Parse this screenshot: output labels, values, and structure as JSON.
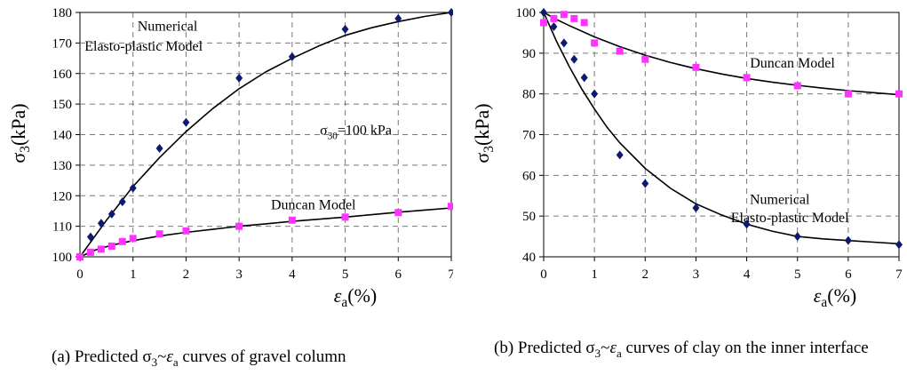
{
  "colors": {
    "numerical_marker": "#0d1a6e",
    "duncan_marker": "#ff33ff",
    "curve": "#000000",
    "grid": "#777777"
  },
  "chart_data": [
    {
      "type": "scatter",
      "panel": "a",
      "title": "",
      "ylabel": "σ3(kPa)",
      "xlabel": "εa(%)",
      "xlim": [
        0,
        7
      ],
      "ylim": [
        100,
        180
      ],
      "xticks": [
        0,
        1,
        2,
        3,
        4,
        5,
        6,
        7
      ],
      "yticks": [
        100,
        110,
        120,
        130,
        140,
        150,
        160,
        170,
        180
      ],
      "grid": "dashed",
      "annotations": [
        {
          "text": "Numerical",
          "x": 1.65,
          "y": 174
        },
        {
          "text": "Elasto-plastic Model",
          "x": 1.2,
          "y": 167.5
        },
        {
          "text": "σ30=100 kPa",
          "x": 5.2,
          "y": 140
        },
        {
          "text": "Duncan Model",
          "x": 4.4,
          "y": 115.5
        }
      ],
      "series": [
        {
          "marker": "diamond",
          "color": "#0d1a6e",
          "x": [
            0,
            0.2,
            0.4,
            0.6,
            0.8,
            1.0,
            1.5,
            2,
            3,
            4,
            5,
            6,
            7
          ],
          "y": [
            100,
            106.5,
            111,
            114,
            118,
            122.5,
            135.5,
            144,
            158.5,
            165.5,
            174.5,
            178,
            180
          ]
        },
        {
          "marker": "square",
          "color": "#ff33ff",
          "x": [
            0,
            0.2,
            0.4,
            0.6,
            0.8,
            1.0,
            1.5,
            2,
            3,
            4,
            5,
            6,
            7
          ],
          "y": [
            100,
            101.5,
            102.5,
            103.5,
            105,
            106,
            107.5,
            108.5,
            110,
            112,
            113,
            114.5,
            116.5
          ]
        }
      ],
      "fit_curves": [
        {
          "x": [
            0,
            0.5,
            1,
            1.5,
            2,
            2.5,
            3,
            3.5,
            4,
            4.5,
            5,
            5.5,
            6,
            6.5,
            7
          ],
          "y": [
            100,
            112,
            123,
            132.5,
            141,
            148.5,
            155,
            160.5,
            165,
            169,
            172.5,
            175,
            177,
            178.7,
            180
          ]
        },
        {
          "x": [
            0,
            0.3,
            0.6,
            1,
            1.5,
            2,
            2.5,
            3,
            3.5,
            4,
            4.5,
            5,
            5.5,
            6,
            6.5,
            7
          ],
          "y": [
            100,
            102.3,
            103.8,
            105.3,
            106.8,
            108,
            109,
            110,
            110.8,
            111.6,
            112.3,
            113,
            113.8,
            114.6,
            115.3,
            116
          ]
        }
      ]
    },
    {
      "type": "scatter",
      "panel": "b",
      "title": "",
      "ylabel": "σ3(kPa)",
      "xlabel": "εa(%)",
      "xlim": [
        0,
        7
      ],
      "ylim": [
        40,
        100
      ],
      "xticks": [
        0,
        1,
        2,
        3,
        4,
        5,
        6,
        7
      ],
      "yticks": [
        40,
        50,
        60,
        70,
        80,
        90,
        100
      ],
      "grid": "dashed",
      "annotations": [
        {
          "text": "Duncan Model",
          "x": 4.9,
          "y": 86.5
        },
        {
          "text": "Numerical",
          "x": 4.65,
          "y": 53
        },
        {
          "text": "Elasto-plastic Model",
          "x": 4.85,
          "y": 48.5
        }
      ],
      "series": [
        {
          "marker": "diamond",
          "color": "#0d1a6e",
          "x": [
            0,
            0.2,
            0.4,
            0.6,
            0.8,
            1.0,
            1.5,
            2,
            3,
            4,
            5,
            6,
            7
          ],
          "y": [
            100,
            96.5,
            92.5,
            88.5,
            84,
            80,
            65,
            58,
            52,
            48,
            45,
            44,
            43
          ]
        },
        {
          "marker": "square",
          "color": "#ff33ff",
          "x": [
            0,
            0.2,
            0.4,
            0.6,
            0.8,
            1.0,
            1.5,
            2,
            3,
            4,
            5,
            6,
            7
          ],
          "y": [
            97.5,
            98.5,
            99.5,
            98.5,
            97.5,
            92.5,
            90.5,
            88.5,
            86.5,
            84,
            82,
            80,
            80
          ]
        }
      ],
      "fit_curves": [
        {
          "x": [
            0,
            0.25,
            0.5,
            0.75,
            1,
            1.25,
            1.5,
            2,
            2.5,
            3,
            3.5,
            4,
            4.5,
            5,
            5.5,
            6,
            6.5,
            7
          ],
          "y": [
            100,
            93,
            86.8,
            81.2,
            76.3,
            71.8,
            68,
            61.7,
            56.8,
            53,
            50.3,
            48,
            46.3,
            45,
            44.4,
            44,
            43.6,
            43.2
          ]
        },
        {
          "x": [
            0,
            0.25,
            0.5,
            1,
            1.5,
            2,
            2.5,
            3,
            3.5,
            4,
            4.5,
            5,
            5.5,
            6,
            6.5,
            7
          ],
          "y": [
            100,
            98.3,
            96.8,
            94,
            91.6,
            89.5,
            87.7,
            86.2,
            84.9,
            83.8,
            82.9,
            82.1,
            81.4,
            80.8,
            80.3,
            79.8
          ]
        }
      ]
    }
  ],
  "captions": {
    "a": "(a) Predicted σ3~εa curves of gravel column",
    "b": "(b) Predicted σ3~εa curves of clay on the inner interface"
  }
}
